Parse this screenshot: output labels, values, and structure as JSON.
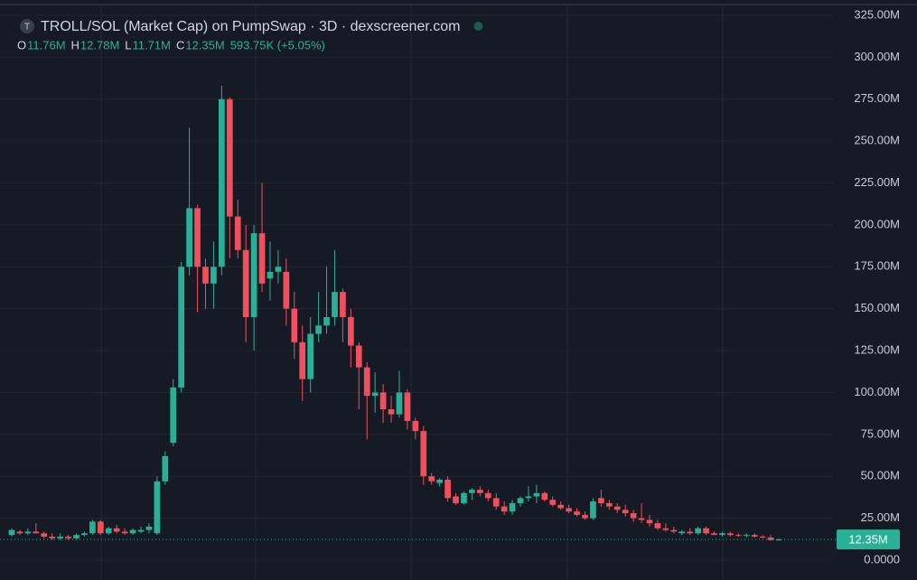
{
  "chart_data": {
    "type": "candlestick",
    "title": "TROLL/SOL (Market Cap) on PumpSwap · 3D · dexscreener.com",
    "icon_letter": "T",
    "ohlc_legend": [
      {
        "key": "O",
        "value": "11.76M"
      },
      {
        "key": "H",
        "value": "12.78M"
      },
      {
        "key": "L",
        "value": "11.71M"
      },
      {
        "key": "C",
        "value": "12.35M"
      }
    ],
    "change": "593.75K (+5.05%)",
    "last_price": {
      "value": 12.35,
      "label": "12.35M"
    },
    "up_color": "#2ab097",
    "down_color": "#f0505d",
    "ylim": [
      0,
      325
    ],
    "yticks": [
      {
        "value": 0,
        "label": "0.0000"
      },
      {
        "value": 25,
        "label": "25.00M"
      },
      {
        "value": 50,
        "label": "50.00M"
      },
      {
        "value": 75,
        "label": "75.00M"
      },
      {
        "value": 100,
        "label": "100.00M"
      },
      {
        "value": 125,
        "label": "125.00M"
      },
      {
        "value": 150,
        "label": "150.00M"
      },
      {
        "value": 175,
        "label": "175.00M"
      },
      {
        "value": 200,
        "label": "200.00M"
      },
      {
        "value": 225,
        "label": "225.00M"
      },
      {
        "value": 250,
        "label": "250.00M"
      },
      {
        "value": 275,
        "label": "275.00M"
      },
      {
        "value": 300,
        "label": "300.00M"
      },
      {
        "value": 325,
        "label": "325.00M"
      }
    ],
    "grid": true,
    "open": [
      15,
      17,
      16,
      17,
      16,
      14,
      13,
      14,
      13,
      15,
      16,
      23,
      16,
      19,
      17,
      16,
      17,
      18,
      16,
      47,
      70,
      103,
      175,
      210,
      175,
      165,
      175,
      275,
      205,
      185,
      145,
      195,
      168,
      172,
      172,
      150,
      130,
      108,
      135,
      140,
      145,
      160,
      145,
      128,
      115,
      98,
      100,
      90,
      87,
      100,
      83,
      77,
      50,
      46,
      48,
      38,
      34,
      40,
      42,
      40,
      37,
      32,
      29,
      34,
      37,
      38,
      40,
      36,
      33,
      31,
      29,
      27,
      25,
      37,
      34,
      32,
      30,
      28,
      25,
      24,
      22,
      19,
      18,
      16,
      17,
      16,
      19,
      16,
      15,
      16,
      15,
      14.5,
      15,
      14,
      13.5,
      11.76
    ],
    "high": [
      19,
      18,
      19,
      22,
      17,
      16,
      16,
      15,
      16,
      17,
      24,
      24,
      20,
      21,
      19,
      19,
      20,
      22,
      50,
      65,
      108,
      178,
      258,
      212,
      180,
      190,
      283,
      276,
      215,
      200,
      200,
      225,
      190,
      185,
      180,
      160,
      140,
      145,
      160,
      175,
      185,
      162,
      150,
      130,
      118,
      112,
      105,
      98,
      113,
      102,
      85,
      80,
      52,
      49,
      50,
      40,
      41,
      43,
      44,
      42,
      40,
      35,
      36,
      38,
      44,
      45,
      41,
      38,
      35,
      33,
      31,
      29,
      37,
      42,
      36,
      34,
      33,
      30,
      34,
      27,
      24,
      22,
      20,
      18,
      19,
      20,
      20,
      17,
      17,
      17,
      16,
      16,
      16,
      15,
      15,
      12.78
    ],
    "low": [
      14,
      15,
      15,
      16,
      13,
      12,
      12,
      12,
      12,
      14,
      15,
      15,
      15,
      16,
      15,
      15,
      16,
      16,
      15,
      45,
      68,
      100,
      170,
      148,
      150,
      150,
      170,
      180,
      180,
      130,
      125,
      160,
      155,
      165,
      140,
      120,
      95,
      100,
      130,
      135,
      140,
      130,
      115,
      90,
      72,
      88,
      82,
      82,
      85,
      78,
      72,
      45,
      45,
      44,
      35,
      33,
      33,
      36,
      38,
      35,
      30,
      27,
      27,
      32,
      35,
      34,
      35,
      32,
      30,
      28,
      26,
      24,
      24,
      32,
      30,
      28,
      26,
      23,
      22,
      20,
      18,
      17,
      16,
      15,
      15,
      15,
      15,
      15,
      14,
      14,
      14,
      13.5,
      13.5,
      13,
      11.5,
      11.71
    ],
    "close": [
      18,
      16,
      17,
      16,
      14,
      13,
      14,
      13,
      15,
      16,
      23,
      16,
      19,
      17,
      16,
      18,
      18,
      20,
      47,
      62,
      103,
      175,
      210,
      175,
      165,
      175,
      275,
      205,
      185,
      145,
      195,
      165,
      172,
      175,
      150,
      130,
      108,
      135,
      140,
      145,
      160,
      145,
      128,
      115,
      98,
      100,
      90,
      87,
      100,
      83,
      77,
      50,
      47,
      48,
      37,
      34,
      40,
      42,
      40,
      37,
      32,
      29,
      34,
      37,
      38,
      40,
      36,
      33,
      31,
      29,
      27,
      25,
      35,
      34,
      32,
      30,
      28,
      25,
      24,
      22,
      19,
      18,
      17,
      17,
      16,
      19,
      16,
      15,
      16,
      15,
      14.5,
      15,
      14,
      13.5,
      12,
      12.35
    ]
  }
}
